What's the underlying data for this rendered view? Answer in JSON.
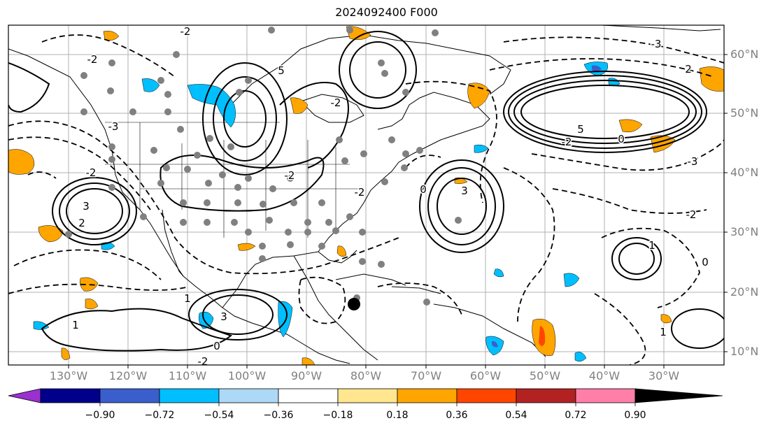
{
  "title": "2024092400 F000",
  "lat_labels": [
    "60°N",
    "50°N",
    "40°N",
    "30°N",
    "20°N",
    "10°N"
  ],
  "lon_labels": [
    "130°W",
    "120°W",
    "110°W",
    "100°W",
    "90°W",
    "80°W",
    "70°W",
    "60°W",
    "50°W",
    "40°W",
    "30°W"
  ],
  "contour_labels": {
    "l1": "3",
    "l2": "2",
    "l3": "-3",
    "l4": "-2",
    "l5": "-2",
    "l6": "5",
    "l7": "-2",
    "l8": "0",
    "l9": "3",
    "l10": "-2",
    "l11": "-2",
    "l12": "1",
    "l13": "-2",
    "l14": "-3",
    "l15": "0",
    "l16": "3",
    "l17": "1",
    "l18": "1",
    "l19": "0",
    "l20": "-2",
    "l21": "0",
    "l22": "1",
    "l23": "-2",
    "l24": "-2",
    "l25": "2",
    "l26": "-3",
    "l27": "5"
  },
  "colorbar": {
    "colors": [
      "#9b30d0",
      "#00008b",
      "#3a5fcd",
      "#00bfff",
      "#add8f6",
      "#ffffff",
      "#ffe68f",
      "#ffa500",
      "#ff4500",
      "#b22222",
      "#ff7fa8"
    ],
    "ticks": [
      "−0.90",
      "−0.72",
      "−0.54",
      "−0.36",
      "−0.18",
      "0.18",
      "0.36",
      "0.54",
      "0.72",
      "0.90"
    ]
  }
}
